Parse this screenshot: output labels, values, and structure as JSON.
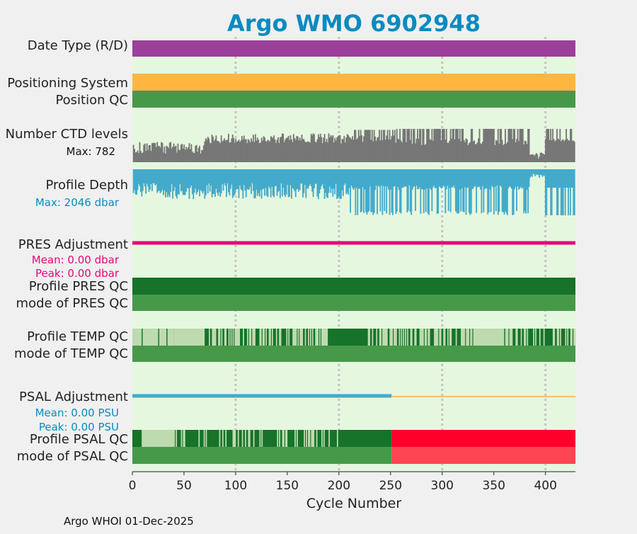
{
  "chart_data": {
    "type": "table",
    "title": "Argo WMO 6902948",
    "xlabel": "Cycle Number",
    "xlim": [
      0,
      429
    ],
    "xticks": [
      0,
      50,
      100,
      150,
      200,
      250,
      300,
      350,
      400
    ],
    "gridlines_x": [
      100,
      200,
      300,
      400
    ],
    "grid": true,
    "footer": "Argo WHOI 01-Dec-2025",
    "colors": {
      "background": "#e6f7df",
      "title": "#0a8bbf",
      "date_type": "#9b3f9b",
      "positioning": "#ffb640",
      "qc_good": "#47994a",
      "qc_dark": "#167329",
      "qc_light": "#bedbb0",
      "qc_bad": "#ff002b",
      "qc_bad_mode": "#ff4454",
      "ctd": "#777777",
      "depth": "#44aacc",
      "pres_adj": "#e8067a",
      "psal_adj": "#44aacc",
      "psal_adj_late": "#f2b14b",
      "grid": "#c4c4c4"
    },
    "rows": {
      "date_type": {
        "label": "Date Type (R/D)",
        "color": "#9b3f9b",
        "value": "D"
      },
      "positioning": {
        "label": "Positioning System",
        "color": "#ffb640"
      },
      "position_qc": {
        "label": "Position QC",
        "color": "#47994a"
      },
      "ctd_levels": {
        "label": "Number CTD levels",
        "max_label": "Max: 782",
        "max": 782,
        "color": "#777777"
      },
      "profile_depth": {
        "label": "Profile Depth",
        "max_label": "Max: 2046 dbar",
        "max": 2046,
        "color": "#44aacc"
      },
      "pres_adjustment": {
        "label": "PRES Adjustment",
        "mean_label": "Mean: 0.00 dbar",
        "peak_label": "Peak: 0.00 dbar",
        "color": "#e8067a"
      },
      "profile_pres_qc": {
        "label": "Profile PRES QC",
        "color": "#167329"
      },
      "mode_pres_qc": {
        "label": "mode of PRES QC",
        "color": "#47994a"
      },
      "profile_temp_qc": {
        "label": "Profile TEMP QC",
        "segments": [
          {
            "from": 0,
            "to": 9,
            "qc": "light"
          },
          {
            "from": 9,
            "to": 40,
            "qc": "light"
          },
          {
            "from": 40,
            "to": 70,
            "qc": "light"
          },
          {
            "from": 70,
            "to": 190,
            "qc": "mixed"
          },
          {
            "from": 190,
            "to": 225,
            "qc": "dark"
          },
          {
            "from": 225,
            "to": 330,
            "qc": "mixed"
          },
          {
            "from": 330,
            "to": 360,
            "qc": "light"
          },
          {
            "from": 360,
            "to": 429,
            "qc": "mixed"
          }
        ]
      },
      "mode_temp_qc": {
        "label": "mode of TEMP QC",
        "color": "#47994a"
      },
      "psal_adjustment": {
        "label": "PSAL Adjustment",
        "mean_label": "Mean: 0.00 PSU",
        "peak_label": "Peak: 0.00 PSU",
        "split_cycle": 251
      },
      "profile_psal_qc": {
        "label": "Profile PSAL QC",
        "split_cycle": 251
      },
      "mode_psal_qc": {
        "label": "mode of PSAL QC",
        "split_cycle": 251
      }
    }
  }
}
